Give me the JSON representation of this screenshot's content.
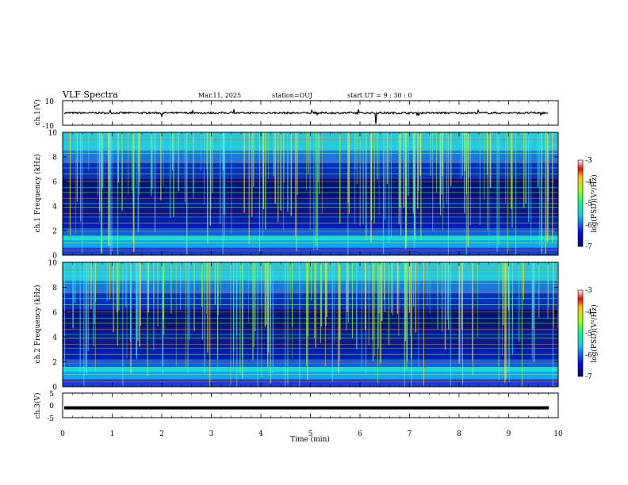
{
  "header": {
    "title": "VLF Spectra",
    "date": "Mar.11, 2025",
    "station": "station=OUJ",
    "start": "start UT =  9 : 30 : 0"
  },
  "chart_data": [
    {
      "type": "line",
      "panel": "ch1-waveform",
      "ylabel": "ch.1(V)",
      "ylim": [
        -10,
        10
      ],
      "yticks": [
        "10",
        "-10"
      ],
      "baseline": 0,
      "xlim": [
        0,
        10
      ]
    },
    {
      "type": "heatmap",
      "panel": "ch1-spectrogram",
      "ylabel": "ch.1 Frequency (kHz)",
      "ylim": [
        0,
        10
      ],
      "yticks": [
        "10",
        "8",
        "6",
        "4",
        "2",
        "0"
      ],
      "colorbar": {
        "label": "log(PSD)(V²/Hz)",
        "range": [
          -7,
          -3
        ],
        "ticks": [
          "-3",
          "-4",
          "-5",
          "-6",
          "-7"
        ]
      }
    },
    {
      "type": "heatmap",
      "panel": "ch2-spectrogram",
      "ylabel": "ch.2 Frequency (kHz)",
      "ylim": [
        0,
        10
      ],
      "yticks": [
        "10",
        "8",
        "6",
        "4",
        "2",
        "0"
      ],
      "colorbar": {
        "label": "log(PSD)(V²/Hz)",
        "range": [
          -7,
          -3
        ],
        "ticks": [
          "-3",
          "-4",
          "-5",
          "-6",
          "-7"
        ]
      }
    },
    {
      "type": "line",
      "panel": "ch3-waveform",
      "ylabel": "ch.3(V)",
      "ylim": [
        -5,
        5
      ],
      "yticks": [
        "5",
        "0",
        "-5"
      ],
      "baseline": -1,
      "xlim": [
        0,
        10
      ],
      "xlabel": "Time (min)",
      "xticks": [
        "0",
        "1",
        "2",
        "3",
        "4",
        "5",
        "6",
        "7",
        "8",
        "9",
        "10"
      ]
    }
  ]
}
